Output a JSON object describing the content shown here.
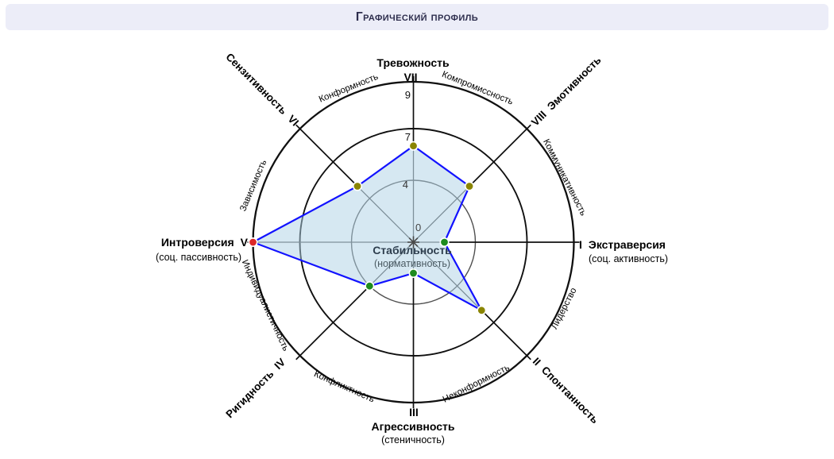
{
  "header": {
    "title": "Графический профиль"
  },
  "chart_data": {
    "type": "radar",
    "title": "Графический профиль",
    "scale": {
      "min": 0,
      "max": 9,
      "tick_labels": [
        "0",
        "4",
        "7",
        "9"
      ],
      "rings_at": [
        4,
        7,
        9
      ],
      "grid": "on"
    },
    "center": {
      "label": "Стабильность",
      "sublabel": "(нормативность)"
    },
    "axes": [
      {
        "numeral": "I",
        "name": "Экстраверсия",
        "sublabel": "(соц. активность)",
        "angle_deg": 0,
        "value": 2,
        "dot_color": "#1e8b1e"
      },
      {
        "numeral": "II",
        "name": "Спонтанность",
        "sublabel": "",
        "angle_deg": 315,
        "value": 6,
        "dot_color": "#8a8500"
      },
      {
        "numeral": "III",
        "name": "Агрессивность",
        "sublabel": "(стеничность)",
        "angle_deg": 270,
        "value": 2,
        "dot_color": "#1e8b1e"
      },
      {
        "numeral": "IV",
        "name": "Ригидность",
        "sublabel": "",
        "angle_deg": 225,
        "value": 4,
        "dot_color": "#1e8b1e"
      },
      {
        "numeral": "V",
        "name": "Интроверсия",
        "sublabel": "(соц. пассивность)",
        "angle_deg": 180,
        "value": 9,
        "dot_color": "#dd2828"
      },
      {
        "numeral": "VI",
        "name": "Сензитивность",
        "sublabel": "",
        "angle_deg": 135,
        "value": 5,
        "dot_color": "#8a8500"
      },
      {
        "numeral": "VII",
        "name": "Тревожность",
        "sublabel": "",
        "angle_deg": 90,
        "value": 6,
        "dot_color": "#8a8500"
      },
      {
        "numeral": "VIII",
        "name": "Эмотивность",
        "sublabel": "",
        "angle_deg": 45,
        "value": 5,
        "dot_color": "#8a8500"
      }
    ],
    "secondary_labels": [
      {
        "text": "Конформность",
        "between": "VI-VII"
      },
      {
        "text": "Компромиссность",
        "between": "VII-VIII"
      },
      {
        "text": "Коммуникативность",
        "between": "VIII-I"
      },
      {
        "text": "Лидерство",
        "between": "I-II"
      },
      {
        "text": "Неконформность",
        "between": "II-III"
      },
      {
        "text": "Конфликтность",
        "between": "III-IV"
      },
      {
        "text": "Индивидуалистичность",
        "between": "IV-V"
      },
      {
        "text": "Зависимость",
        "between": "V-VI"
      }
    ],
    "colors": {
      "polygon_stroke": "#1212ff",
      "polygon_fill": "#aed2e6",
      "outer_grid": "#101010",
      "inner_grid": "#4f4f4f",
      "dot_green": "#1e8b1e",
      "dot_olive": "#8a8500",
      "dot_red": "#dd2828",
      "header_bg": "#ecedf8"
    }
  }
}
